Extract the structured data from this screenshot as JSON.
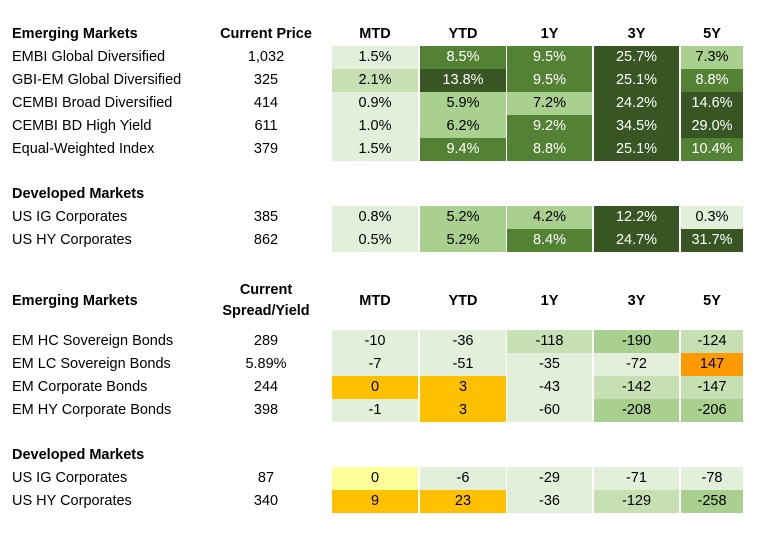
{
  "columns": {
    "price_header": "Current Price",
    "spread_header_line1": "Current",
    "spread_header_line2": "Spread/Yield",
    "periods": [
      "MTD",
      "YTD",
      "1Y",
      "3Y",
      "5Y"
    ]
  },
  "colors": {
    "green_1": "#e2efda",
    "green_2": "#c6e0b4",
    "green_3": "#a9d08e",
    "green_4": "#70ad47",
    "green_5": "#548235",
    "green_6": "#375623",
    "yellow_light": "#ffff99",
    "amber": "#ffc000",
    "orange": "#ff9900"
  },
  "returns": {
    "sections": [
      {
        "title": "Emerging Markets",
        "rows": [
          {
            "name": "EMBI Global Diversified",
            "price": "1,032",
            "values": [
              "1.5%",
              "8.5%",
              "9.5%",
              "25.7%",
              "7.3%"
            ],
            "fills": [
              "#e2efda",
              "#548235",
              "#548235",
              "#375623",
              "#a9d08e"
            ]
          },
          {
            "name": "GBI-EM Global Diversified",
            "price": "325",
            "values": [
              "2.1%",
              "13.8%",
              "9.5%",
              "25.1%",
              "8.8%"
            ],
            "fills": [
              "#c6e0b4",
              "#375623",
              "#548235",
              "#375623",
              "#548235"
            ]
          },
          {
            "name": "CEMBI Broad Diversified",
            "price": "414",
            "values": [
              "0.9%",
              "5.9%",
              "7.2%",
              "24.2%",
              "14.6%"
            ],
            "fills": [
              "#e2efda",
              "#a9d08e",
              "#a9d08e",
              "#375623",
              "#375623"
            ]
          },
          {
            "name": "CEMBI BD High Yield",
            "price": "611",
            "values": [
              "1.0%",
              "6.2%",
              "9.2%",
              "34.5%",
              "29.0%"
            ],
            "fills": [
              "#e2efda",
              "#a9d08e",
              "#548235",
              "#375623",
              "#375623"
            ]
          },
          {
            "name": "Equal-Weighted Index",
            "price": "379",
            "values": [
              "1.5%",
              "9.4%",
              "8.8%",
              "25.1%",
              "10.4%"
            ],
            "fills": [
              "#e2efda",
              "#548235",
              "#548235",
              "#375623",
              "#548235"
            ]
          }
        ]
      },
      {
        "title": "Developed Markets",
        "rows": [
          {
            "name": "US IG Corporates",
            "price": "385",
            "values": [
              "0.8%",
              "5.2%",
              "4.2%",
              "12.2%",
              "0.3%"
            ],
            "fills": [
              "#e2efda",
              "#a9d08e",
              "#a9d08e",
              "#375623",
              "#e2efda"
            ]
          },
          {
            "name": "US HY Corporates",
            "price": "862",
            "values": [
              "0.5%",
              "5.2%",
              "8.4%",
              "24.7%",
              "31.7%"
            ],
            "fills": [
              "#e2efda",
              "#a9d08e",
              "#548235",
              "#375623",
              "#375623"
            ]
          }
        ]
      }
    ]
  },
  "spreads": {
    "sections": [
      {
        "title": "Emerging Markets",
        "rows": [
          {
            "name": "EM HC Sovereign Bonds",
            "price": "289",
            "values": [
              "-10",
              "-36",
              "-118",
              "-190",
              "-124"
            ],
            "fills": [
              "#e2efda",
              "#e2efda",
              "#c6e0b4",
              "#a9d08e",
              "#c6e0b4"
            ]
          },
          {
            "name": "EM LC Sovereign Bonds",
            "price": "5.89%",
            "values": [
              "-7",
              "-51",
              "-35",
              "-72",
              "147"
            ],
            "fills": [
              "#e2efda",
              "#e2efda",
              "#e2efda",
              "#e2efda",
              "#ff9900"
            ]
          },
          {
            "name": "EM Corporate Bonds",
            "price": "244",
            "values": [
              "0",
              "3",
              "-43",
              "-142",
              "-147"
            ],
            "fills": [
              "#ffc000",
              "#ffc000",
              "#e2efda",
              "#c6e0b4",
              "#c6e0b4"
            ]
          },
          {
            "name": "EM HY Corporate Bonds",
            "price": "398",
            "values": [
              "-1",
              "3",
              "-60",
              "-208",
              "-206"
            ],
            "fills": [
              "#e2efda",
              "#ffc000",
              "#e2efda",
              "#a9d08e",
              "#a9d08e"
            ]
          }
        ]
      },
      {
        "title": "Developed Markets",
        "rows": [
          {
            "name": "US IG Corporates",
            "price": "87",
            "values": [
              "0",
              "-6",
              "-29",
              "-71",
              "-78"
            ],
            "fills": [
              "#ffff99",
              "#e2efda",
              "#e2efda",
              "#e2efda",
              "#e2efda"
            ]
          },
          {
            "name": "US HY Corporates",
            "price": "340",
            "values": [
              "9",
              "23",
              "-36",
              "-129",
              "-258"
            ],
            "fills": [
              "#ffc000",
              "#ffc000",
              "#e2efda",
              "#c6e0b4",
              "#a9d08e"
            ]
          }
        ]
      }
    ]
  }
}
